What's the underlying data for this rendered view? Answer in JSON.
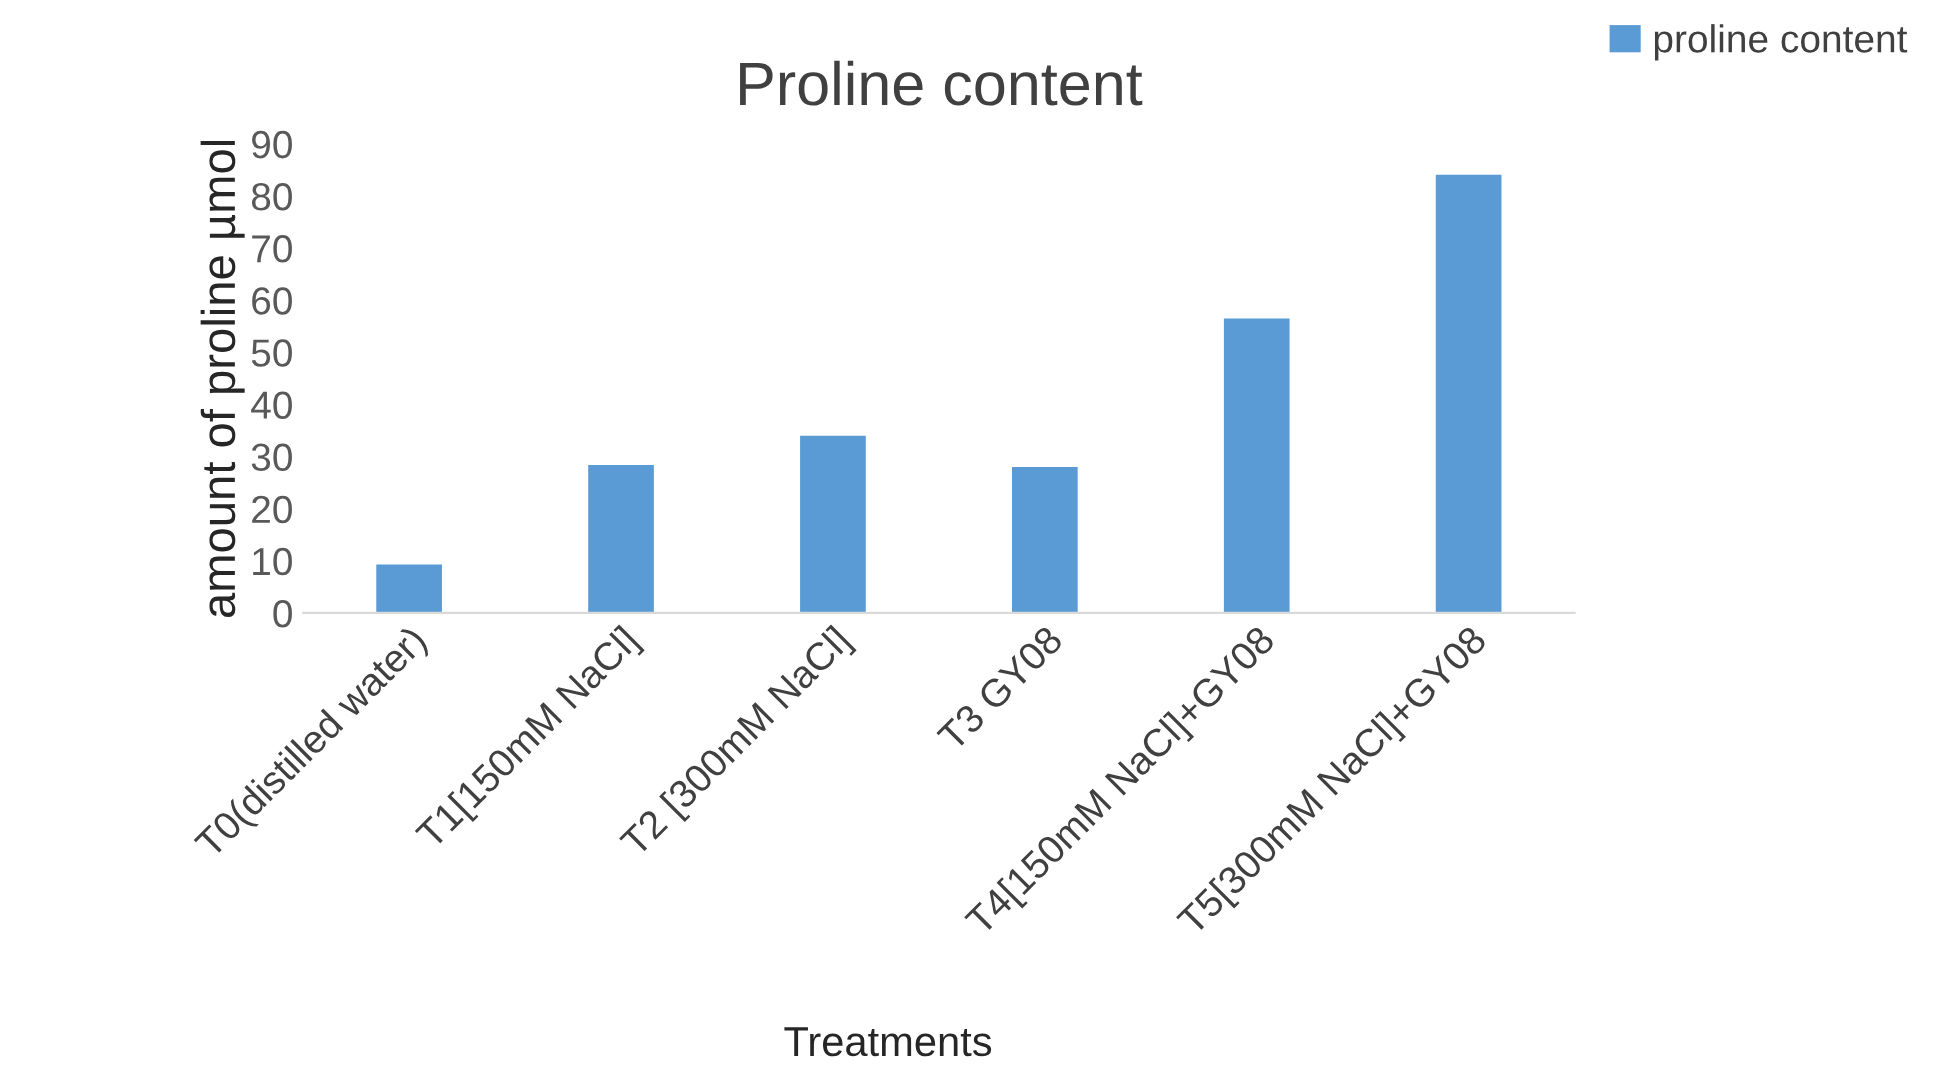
{
  "chart_data": {
    "type": "bar",
    "title": "Proline content",
    "xlabel": "Treatments",
    "ylabel": "amount of proline µmol",
    "categories": [
      "T0(distilled water)",
      "T1[150mM NaCl]",
      "T2 [300mM NaCl]",
      "T3 GY08",
      "T4[150mM NaCl]+GY08",
      "T5[300mM NaCl]+GY08"
    ],
    "series": [
      {
        "name": "proline content",
        "color": "#5b9bd5",
        "values": [
          9.3,
          28.4,
          34.0,
          28.0,
          56.5,
          84.1
        ]
      }
    ],
    "ylim": [
      0,
      90
    ],
    "yticks": [
      0,
      10,
      20,
      30,
      40,
      50,
      60,
      70,
      80,
      90
    ],
    "grid": false,
    "legend": "top right"
  }
}
